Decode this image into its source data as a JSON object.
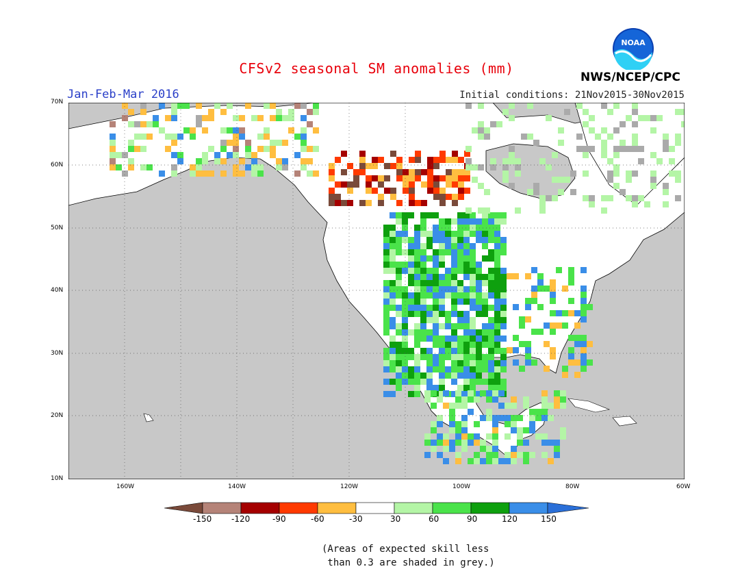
{
  "title": "CFSv2 seasonal SM anomalies (mm)",
  "period": "Jan-Feb-Mar 2016",
  "initial_conditions": "Initial conditions: 21Nov2015-30Nov2015",
  "organization": "NWS/NCEP/CPC",
  "logo_text": "NOAA",
  "map": {
    "lat_labels": [
      "70N",
      "60N",
      "50N",
      "40N",
      "30N",
      "20N",
      "10N"
    ],
    "lon_labels": [
      "160W",
      "140W",
      "120W",
      "100W",
      "80W",
      "60W"
    ],
    "lat_range": [
      10,
      70
    ],
    "lon_range": [
      -170,
      -60
    ],
    "gridlines": "dotted",
    "land_color": "#ffffff",
    "ocean_color": "#c8c8c8"
  },
  "colorbar": {
    "ticks": [
      "-150",
      "-120",
      "-90",
      "-60",
      "-30",
      "30",
      "60",
      "90",
      "120",
      "150"
    ],
    "colors": [
      "#7a4a3a",
      "#b58378",
      "#a50000",
      "#ff3a00",
      "#ffbe40",
      "#ffffff",
      "#b4f5a6",
      "#4ae34a",
      "#0ea00e",
      "#3a8ee8",
      "#2a6fd8"
    ]
  },
  "footnote": "(Areas of expected skill less\n than 0.3 are shaded in grey.)"
}
